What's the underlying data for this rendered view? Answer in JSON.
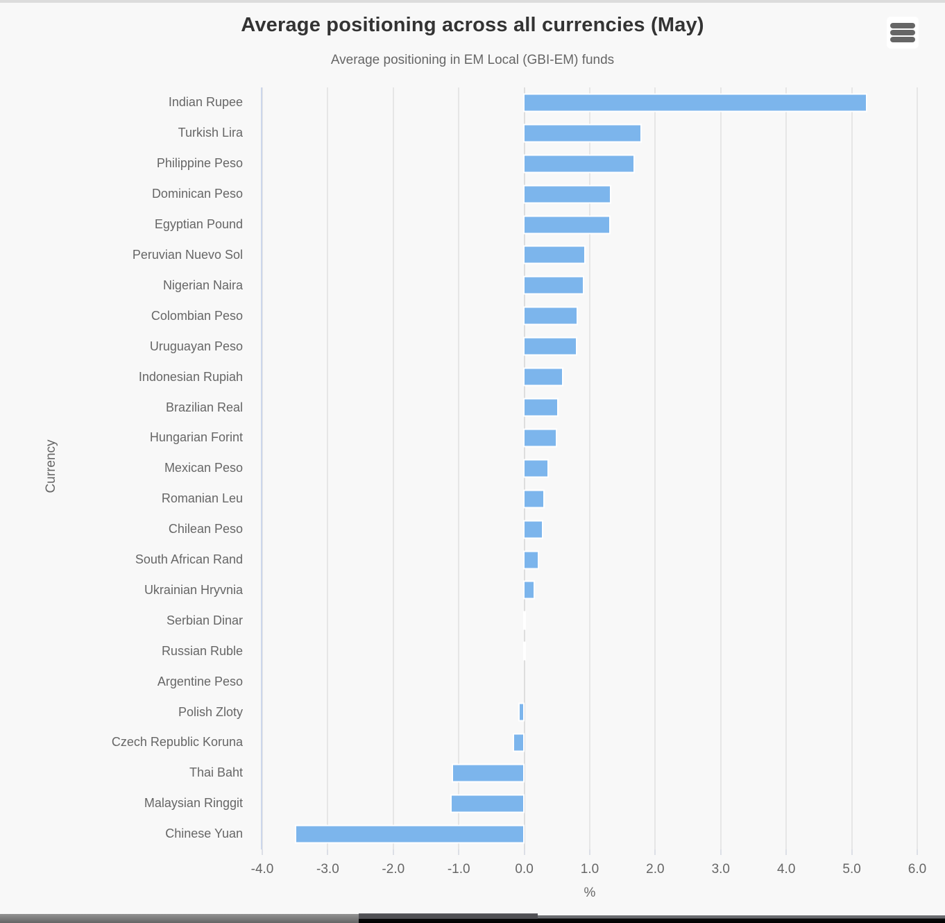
{
  "chart": {
    "title": "Average positioning across all currencies (May)",
    "subtitle": "Average positioning in EM Local (GBI-EM) funds",
    "export_menu_icon": "hamburger-icon"
  },
  "chart_data": {
    "type": "bar",
    "orientation": "horizontal",
    "title": "Average positioning across all currencies (May)",
    "subtitle": "Average positioning in EM Local (GBI-EM) funds",
    "xlabel": "%",
    "ylabel": "Currency",
    "xlim": [
      -4.0,
      6.0
    ],
    "grid": true,
    "bar_color": "#7cb5ec",
    "categories": [
      "Indian Rupee",
      "Turkish Lira",
      "Philippine Peso",
      "Dominican Peso",
      "Egyptian Pound",
      "Peruvian Nuevo Sol",
      "Nigerian Naira",
      "Colombian Peso",
      "Uruguayan Peso",
      "Indonesian Rupiah",
      "Brazilian Real",
      "Hungarian Forint",
      "Mexican Peso",
      "Romanian Leu",
      "Chilean Peso",
      "South African Rand",
      "Ukrainian Hryvnia",
      "Serbian Dinar",
      "Russian Ruble",
      "Argentine Peso",
      "Polish Zloty",
      "Czech Republic Koruna",
      "Thai Baht",
      "Malaysian Ringgit",
      "Chinese Yuan"
    ],
    "values": [
      5.24,
      1.79,
      1.69,
      1.33,
      1.32,
      0.94,
      0.92,
      0.82,
      0.81,
      0.6,
      0.52,
      0.5,
      0.37,
      0.31,
      0.29,
      0.23,
      0.16,
      0.03,
      0.02,
      0.0,
      -0.07,
      -0.15,
      -1.09,
      -1.11,
      -3.48
    ],
    "x_ticks": [
      {
        "v": -4,
        "label": "-4.0"
      },
      {
        "v": -3,
        "label": "-3.0"
      },
      {
        "v": -2,
        "label": "-2.0"
      },
      {
        "v": -1,
        "label": "-1.0"
      },
      {
        "v": 0,
        "label": "0.0"
      },
      {
        "v": 1,
        "label": "1.0"
      },
      {
        "v": 2,
        "label": "2.0"
      },
      {
        "v": 3,
        "label": "3.0"
      },
      {
        "v": 4,
        "label": "4.0"
      },
      {
        "v": 5,
        "label": "5.0"
      },
      {
        "v": 6,
        "label": "6.0"
      }
    ]
  },
  "colors": {
    "bar": "#7cb5ec",
    "bar_border": "#ffffff",
    "gridline": "#e6e6e6",
    "axis_line": "#ccd6eb",
    "title_text": "#333333",
    "label_text": "#666666",
    "background": "#f8f8f8"
  }
}
